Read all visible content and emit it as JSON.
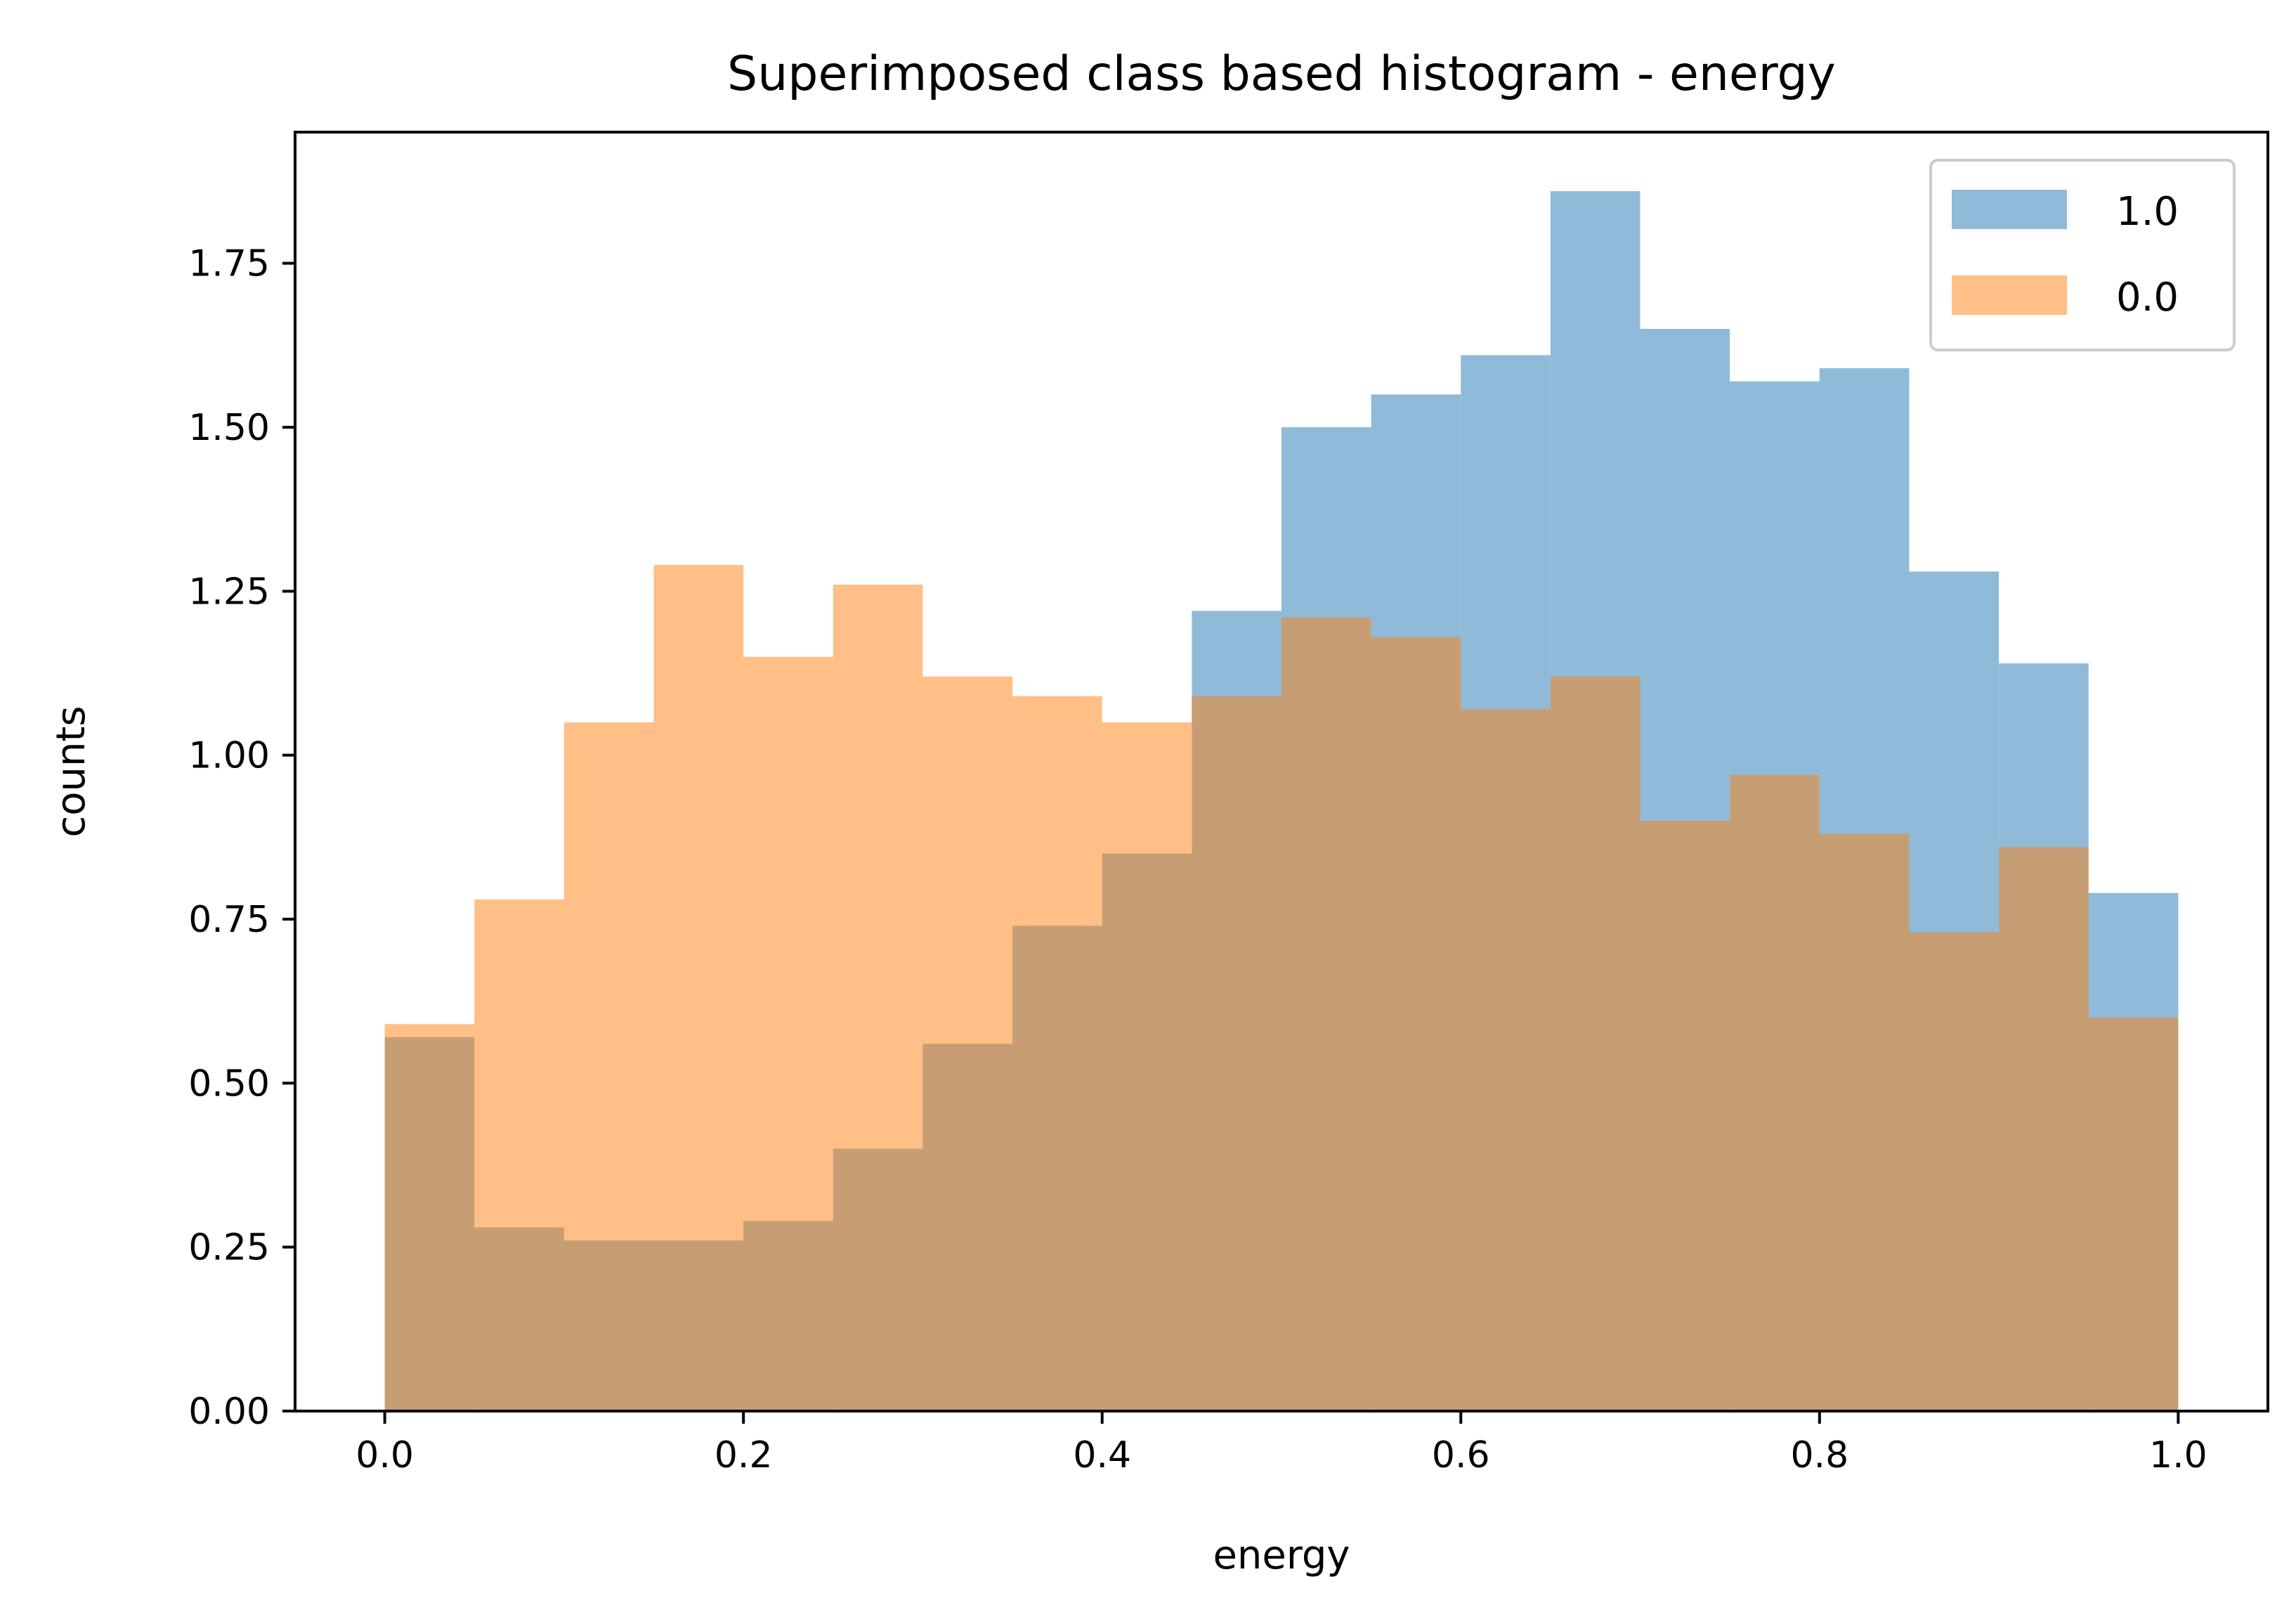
{
  "chart_data": {
    "type": "histogram",
    "title": "Superimposed class based histogram - energy",
    "xlabel": "energy",
    "ylabel": "counts",
    "xlim": [
      -0.05,
      1.05
    ],
    "ylim": [
      0,
      1.95
    ],
    "bin_width": 0.05,
    "x_ticks": [
      0.0,
      0.2,
      0.4,
      0.6,
      0.8,
      1.0
    ],
    "x_tick_labels": [
      "0.0",
      "0.2",
      "0.4",
      "0.6",
      "0.8",
      "1.0"
    ],
    "y_ticks": [
      0.0,
      0.25,
      0.5,
      0.75,
      1.0,
      1.25,
      1.5,
      1.75
    ],
    "y_tick_labels": [
      "0.00",
      "0.25",
      "0.50",
      "0.75",
      "1.00",
      "1.25",
      "1.50",
      "1.75"
    ],
    "grid": false,
    "legend_position": "top-right",
    "bin_edges": [
      0.0,
      0.05,
      0.1,
      0.15,
      0.2,
      0.25,
      0.3,
      0.35,
      0.4,
      0.45,
      0.5,
      0.55,
      0.6,
      0.65,
      0.7,
      0.75,
      0.8,
      0.85,
      0.9,
      0.95,
      1.0
    ],
    "series": [
      {
        "name": "1.0",
        "color": "#1f77b4",
        "opacity": 0.5,
        "values": [
          0.57,
          0.28,
          0.26,
          0.26,
          0.29,
          0.4,
          0.56,
          0.74,
          0.85,
          1.22,
          1.5,
          1.55,
          1.61,
          1.86,
          1.65,
          1.57,
          1.59,
          1.28,
          1.14,
          0.79
        ]
      },
      {
        "name": "0.0",
        "color": "#ff7f0e",
        "opacity": 0.5,
        "values": [
          0.59,
          0.78,
          1.05,
          1.29,
          1.15,
          1.26,
          1.12,
          1.09,
          1.05,
          1.09,
          1.21,
          1.18,
          1.07,
          1.12,
          0.9,
          0.97,
          0.88,
          0.73,
          0.86,
          0.6
        ]
      }
    ]
  }
}
